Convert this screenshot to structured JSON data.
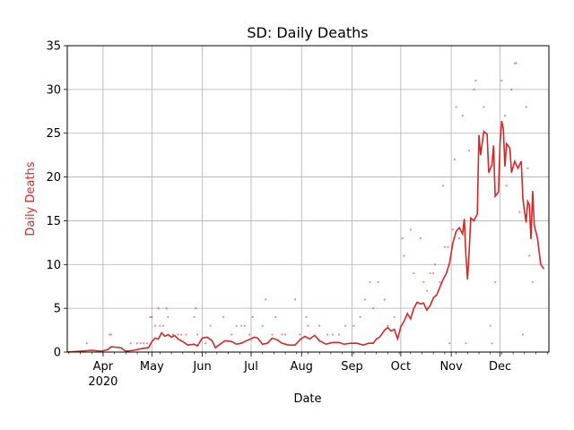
{
  "chart_data": {
    "type": "line",
    "title": "SD: Daily Deaths",
    "xlabel": "Date",
    "ylabel": "Daily Deaths",
    "ylabel_color": "#d62728",
    "line_color": "#d62728",
    "grid": true,
    "xlim": [
      "2020-03-10",
      "2020-12-31"
    ],
    "ylim": [
      0,
      35
    ],
    "yticks": [
      0,
      5,
      10,
      15,
      20,
      25,
      30,
      35
    ],
    "xticks": [
      {
        "date": "2020-04-01",
        "label": "Apr",
        "sublabel": "2020"
      },
      {
        "date": "2020-05-01",
        "label": "May",
        "sublabel": ""
      },
      {
        "date": "2020-06-01",
        "label": "Jun",
        "sublabel": ""
      },
      {
        "date": "2020-07-01",
        "label": "Jul",
        "sublabel": ""
      },
      {
        "date": "2020-08-01",
        "label": "Aug",
        "sublabel": ""
      },
      {
        "date": "2020-09-01",
        "label": "Sep",
        "sublabel": ""
      },
      {
        "date": "2020-10-01",
        "label": "Oct",
        "sublabel": ""
      },
      {
        "date": "2020-11-01",
        "label": "Nov",
        "sublabel": ""
      },
      {
        "date": "2020-12-01",
        "label": "Dec",
        "sublabel": ""
      }
    ],
    "series": [
      {
        "kind": "line",
        "points": [
          [
            "2020-03-10",
            0
          ],
          [
            "2020-03-18",
            0.1
          ],
          [
            "2020-03-25",
            0.2
          ],
          [
            "2020-03-31",
            0.1
          ],
          [
            "2020-04-04",
            0.3
          ],
          [
            "2020-04-06",
            0.6
          ],
          [
            "2020-04-12",
            0.5
          ],
          [
            "2020-04-15",
            0.1
          ],
          [
            "2020-04-20",
            0.2
          ],
          [
            "2020-04-25",
            0.4
          ],
          [
            "2020-04-29",
            0.5
          ],
          [
            "2020-05-01",
            1.2
          ],
          [
            "2020-05-03",
            1.6
          ],
          [
            "2020-05-05",
            1.5
          ],
          [
            "2020-05-07",
            2.2
          ],
          [
            "2020-05-09",
            1.8
          ],
          [
            "2020-05-11",
            2.0
          ],
          [
            "2020-05-13",
            1.7
          ],
          [
            "2020-05-15",
            1.9
          ],
          [
            "2020-05-17",
            1.5
          ],
          [
            "2020-05-20",
            1.2
          ],
          [
            "2020-05-23",
            0.8
          ],
          [
            "2020-05-27",
            0.9
          ],
          [
            "2020-05-29",
            0.7
          ],
          [
            "2020-06-01",
            1.6
          ],
          [
            "2020-06-04",
            1.7
          ],
          [
            "2020-06-07",
            1.3
          ],
          [
            "2020-06-09",
            0.5
          ],
          [
            "2020-06-12",
            0.9
          ],
          [
            "2020-06-15",
            1.3
          ],
          [
            "2020-06-19",
            1.2
          ],
          [
            "2020-06-22",
            0.9
          ],
          [
            "2020-06-25",
            1.0
          ],
          [
            "2020-06-28",
            1.3
          ],
          [
            "2020-07-01",
            1.5
          ],
          [
            "2020-07-03",
            1.7
          ],
          [
            "2020-07-05",
            1.6
          ],
          [
            "2020-07-08",
            0.9
          ],
          [
            "2020-07-11",
            1.0
          ],
          [
            "2020-07-14",
            1.6
          ],
          [
            "2020-07-17",
            1.4
          ],
          [
            "2020-07-20",
            1.0
          ],
          [
            "2020-07-24",
            0.8
          ],
          [
            "2020-07-28",
            0.8
          ],
          [
            "2020-07-31",
            1.4
          ],
          [
            "2020-08-03",
            1.8
          ],
          [
            "2020-08-06",
            1.5
          ],
          [
            "2020-08-09",
            1.9
          ],
          [
            "2020-08-12",
            1.3
          ],
          [
            "2020-08-16",
            0.9
          ],
          [
            "2020-08-20",
            1.1
          ],
          [
            "2020-08-24",
            1.1
          ],
          [
            "2020-08-27",
            0.9
          ],
          [
            "2020-08-31",
            1.0
          ],
          [
            "2020-09-04",
            1.0
          ],
          [
            "2020-09-08",
            0.8
          ],
          [
            "2020-09-11",
            1.0
          ],
          [
            "2020-09-14",
            1.0
          ],
          [
            "2020-09-16",
            1.5
          ],
          [
            "2020-09-18",
            1.7
          ],
          [
            "2020-09-21",
            2.5
          ],
          [
            "2020-09-23",
            2.8
          ],
          [
            "2020-09-25",
            2.4
          ],
          [
            "2020-09-27",
            2.6
          ],
          [
            "2020-09-29",
            1.5
          ],
          [
            "2020-10-01",
            2.9
          ],
          [
            "2020-10-03",
            3.5
          ],
          [
            "2020-10-05",
            4.4
          ],
          [
            "2020-10-07",
            3.8
          ],
          [
            "2020-10-09",
            5.0
          ],
          [
            "2020-10-11",
            5.7
          ],
          [
            "2020-10-13",
            5.5
          ],
          [
            "2020-10-15",
            5.6
          ],
          [
            "2020-10-17",
            4.8
          ],
          [
            "2020-10-19",
            5.3
          ],
          [
            "2020-10-21",
            6.2
          ],
          [
            "2020-10-23",
            6.5
          ],
          [
            "2020-10-25",
            7.4
          ],
          [
            "2020-10-27",
            8.3
          ],
          [
            "2020-10-29",
            9.0
          ],
          [
            "2020-10-31",
            10.2
          ],
          [
            "2020-11-02",
            12.5
          ],
          [
            "2020-11-04",
            13.8
          ],
          [
            "2020-11-06",
            14.2
          ],
          [
            "2020-11-08",
            13.5
          ],
          [
            "2020-11-09",
            15.2
          ],
          [
            "2020-11-10",
            11.0
          ],
          [
            "2020-11-11",
            8.3
          ],
          [
            "2020-11-12",
            11.5
          ],
          [
            "2020-11-13",
            15.3
          ],
          [
            "2020-11-15",
            15.0
          ],
          [
            "2020-11-17",
            15.8
          ],
          [
            "2020-11-18",
            24.8
          ],
          [
            "2020-11-19",
            22.5
          ],
          [
            "2020-11-21",
            25.2
          ],
          [
            "2020-11-23",
            24.9
          ],
          [
            "2020-11-24",
            20.5
          ],
          [
            "2020-11-26",
            21.4
          ],
          [
            "2020-11-27",
            23.6
          ],
          [
            "2020-11-28",
            17.8
          ],
          [
            "2020-11-30",
            18.3
          ],
          [
            "2020-12-01",
            24.0
          ],
          [
            "2020-12-02",
            26.4
          ],
          [
            "2020-12-03",
            25.5
          ],
          [
            "2020-12-04",
            21.2
          ],
          [
            "2020-12-05",
            23.8
          ],
          [
            "2020-12-07",
            23.3
          ],
          [
            "2020-12-08",
            20.5
          ],
          [
            "2020-12-10",
            21.8
          ],
          [
            "2020-12-12",
            21.0
          ],
          [
            "2020-12-14",
            21.8
          ],
          [
            "2020-12-15",
            17.5
          ],
          [
            "2020-12-17",
            14.8
          ],
          [
            "2020-12-18",
            17.2
          ],
          [
            "2020-12-19",
            16.8
          ],
          [
            "2020-12-20",
            12.9
          ],
          [
            "2020-12-21",
            18.4
          ],
          [
            "2020-12-22",
            14.5
          ],
          [
            "2020-12-24",
            13.0
          ],
          [
            "2020-12-26",
            10.0
          ],
          [
            "2020-12-28",
            9.5
          ]
        ]
      },
      {
        "kind": "scatter",
        "points": [
          [
            "2020-03-22",
            1
          ],
          [
            "2020-04-05",
            2
          ],
          [
            "2020-04-06",
            2
          ],
          [
            "2020-04-18",
            1
          ],
          [
            "2020-04-22",
            1
          ],
          [
            "2020-04-24",
            1
          ],
          [
            "2020-04-26",
            1
          ],
          [
            "2020-04-28",
            1
          ],
          [
            "2020-04-30",
            4
          ],
          [
            "2020-05-01",
            4
          ],
          [
            "2020-05-03",
            3
          ],
          [
            "2020-05-05",
            5
          ],
          [
            "2020-05-06",
            3
          ],
          [
            "2020-05-08",
            3
          ],
          [
            "2020-05-10",
            5
          ],
          [
            "2020-05-11",
            4
          ],
          [
            "2020-05-14",
            2
          ],
          [
            "2020-05-17",
            2
          ],
          [
            "2020-05-19",
            2
          ],
          [
            "2020-05-22",
            2
          ],
          [
            "2020-05-27",
            4
          ],
          [
            "2020-05-28",
            5
          ],
          [
            "2020-05-29",
            2
          ],
          [
            "2020-06-03",
            1
          ],
          [
            "2020-06-06",
            3
          ],
          [
            "2020-06-14",
            4
          ],
          [
            "2020-06-19",
            2
          ],
          [
            "2020-06-22",
            3
          ],
          [
            "2020-06-25",
            3
          ],
          [
            "2020-06-27",
            3
          ],
          [
            "2020-06-30",
            2
          ],
          [
            "2020-07-02",
            4
          ],
          [
            "2020-07-08",
            3
          ],
          [
            "2020-07-10",
            6
          ],
          [
            "2020-07-14",
            2
          ],
          [
            "2020-07-16",
            4
          ],
          [
            "2020-07-20",
            2
          ],
          [
            "2020-07-22",
            2
          ],
          [
            "2020-07-28",
            6
          ],
          [
            "2020-07-31",
            2
          ],
          [
            "2020-08-04",
            4
          ],
          [
            "2020-08-05",
            3
          ],
          [
            "2020-08-12",
            3
          ],
          [
            "2020-08-17",
            2
          ],
          [
            "2020-08-20",
            2
          ],
          [
            "2020-08-24",
            2
          ],
          [
            "2020-08-28",
            3
          ],
          [
            "2020-09-02",
            3
          ],
          [
            "2020-09-06",
            4
          ],
          [
            "2020-09-09",
            6
          ],
          [
            "2020-09-12",
            8
          ],
          [
            "2020-09-14",
            5
          ],
          [
            "2020-09-17",
            8
          ],
          [
            "2020-09-21",
            6
          ],
          [
            "2020-09-23",
            3
          ],
          [
            "2020-09-27",
            4
          ],
          [
            "2020-10-02",
            13
          ],
          [
            "2020-10-03",
            11
          ],
          [
            "2020-10-07",
            14
          ],
          [
            "2020-10-09",
            9
          ],
          [
            "2020-10-13",
            13
          ],
          [
            "2020-10-15",
            8
          ],
          [
            "2020-10-17",
            7
          ],
          [
            "2020-10-19",
            9
          ],
          [
            "2020-10-21",
            9
          ],
          [
            "2020-10-22",
            10
          ],
          [
            "2020-10-25",
            8
          ],
          [
            "2020-10-27",
            19
          ],
          [
            "2020-10-28",
            12
          ],
          [
            "2020-10-30",
            12
          ],
          [
            "2020-10-31",
            1
          ],
          [
            "2020-11-02",
            14
          ],
          [
            "2020-11-03",
            22
          ],
          [
            "2020-11-04",
            28
          ],
          [
            "2020-11-06",
            13
          ],
          [
            "2020-11-08",
            27
          ],
          [
            "2020-11-10",
            1
          ],
          [
            "2020-11-12",
            23
          ],
          [
            "2020-11-15",
            30
          ],
          [
            "2020-11-16",
            31
          ],
          [
            "2020-11-21",
            28
          ],
          [
            "2020-11-25",
            3
          ],
          [
            "2020-11-26",
            1
          ],
          [
            "2020-11-28",
            8
          ],
          [
            "2020-12-02",
            31
          ],
          [
            "2020-12-04",
            27
          ],
          [
            "2020-12-05",
            19
          ],
          [
            "2020-12-08",
            30
          ],
          [
            "2020-12-10",
            33
          ],
          [
            "2020-12-11",
            33
          ],
          [
            "2020-12-13",
            16
          ],
          [
            "2020-12-15",
            2
          ],
          [
            "2020-12-17",
            28
          ],
          [
            "2020-12-19",
            11
          ],
          [
            "2020-12-21",
            8
          ],
          [
            "2020-12-18",
            21
          ]
        ]
      }
    ]
  }
}
